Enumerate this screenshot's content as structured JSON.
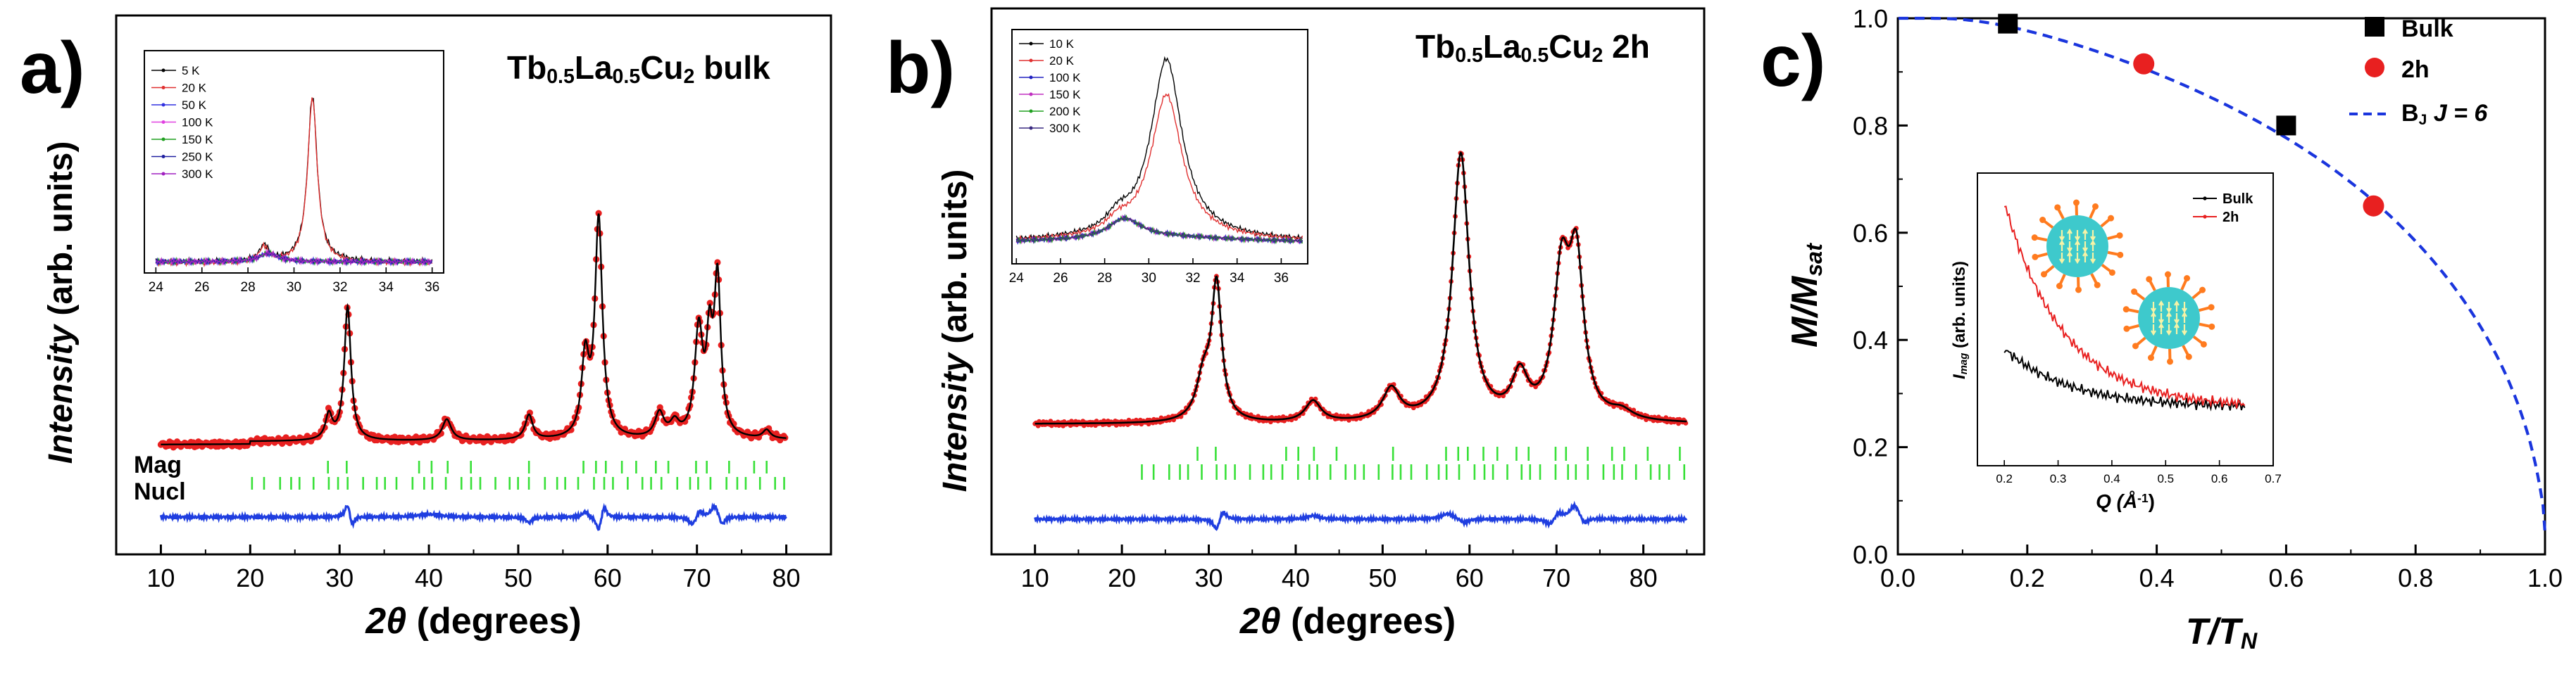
{
  "chart_data": [
    {
      "type": "line",
      "panel_label": "a)",
      "title": "Tb0.5La0.5Cu2 bulk",
      "title_parts": {
        "base": "Tb",
        "s1": "0.5",
        "mid": "La",
        "s2": "0.5",
        "end": "Cu",
        "s3": "2",
        "tail": " bulk"
      },
      "xlabel_sym": "2θ",
      "xlabel_rest": " (degrees)",
      "ylabel_italic": "Intensity",
      "ylabel_rest": " (arb. units)",
      "xlim": [
        5,
        85
      ],
      "xticks": [
        "10",
        "20",
        "30",
        "40",
        "50",
        "60",
        "70",
        "80"
      ],
      "tick_labels": [
        "Mag",
        "Nucl"
      ],
      "peaks_2theta": [
        28.8,
        30.9,
        42.0,
        51.2,
        57.5,
        59.0,
        65.8,
        70.2,
        71.4,
        72.3
      ],
      "inset": {
        "type": "line",
        "xlim": [
          23.5,
          36.5
        ],
        "xticks": [
          "24",
          "26",
          "28",
          "30",
          "32",
          "34",
          "36"
        ],
        "legend": [
          "5 K",
          "20 K",
          "50 K",
          "100 K",
          "150 K",
          "250 K",
          "300 K"
        ],
        "peak_2theta": [
          28.7,
          30.8
        ]
      }
    },
    {
      "type": "line",
      "panel_label": "b)",
      "title": "Tb0.5La0.5Cu2 2h",
      "title_parts": {
        "base": "Tb",
        "s1": "0.5",
        "mid": "La",
        "s2": "0.5",
        "end": "Cu",
        "s3": "2",
        "tail": " 2h"
      },
      "xlabel_sym": "2θ",
      "xlabel_rest": " (degrees)",
      "ylabel_italic": "Intensity",
      "ylabel_rest": " (arb. units)",
      "xlim": [
        5,
        87
      ],
      "xticks": [
        "10",
        "20",
        "30",
        "40",
        "50",
        "60",
        "70",
        "80"
      ],
      "peaks_2theta": [
        29.5,
        30.9,
        42.0,
        51.0,
        59.0,
        66.0,
        70.5,
        72.3
      ],
      "inset": {
        "type": "line",
        "xlim": [
          23.8,
          37.2
        ],
        "xticks": [
          "24",
          "26",
          "28",
          "30",
          "32",
          "34",
          "36"
        ],
        "legend": [
          "10 K",
          "20 K",
          "100 K",
          "150 K",
          "200 K",
          "300 K"
        ],
        "peak_2theta": [
          28.7,
          30.8
        ]
      }
    },
    {
      "type": "scatter",
      "panel_label": "c)",
      "xlabel_main": "T/T",
      "xlabel_sub": "N",
      "ylabel_main": "M/M",
      "ylabel_sub": "sat",
      "xlim": [
        0,
        1
      ],
      "ylim": [
        0,
        1
      ],
      "xticks": [
        "0.0",
        "0.2",
        "0.4",
        "0.6",
        "0.8",
        "1.0"
      ],
      "yticks": [
        "0.0",
        "0.2",
        "0.4",
        "0.6",
        "0.8",
        "1.0"
      ],
      "series": [
        {
          "name": "Bulk",
          "color": "#000000",
          "marker": "square",
          "x": [
            0.17,
            0.6
          ],
          "y": [
            0.99,
            0.8
          ]
        },
        {
          "name": "2h",
          "color": "#e82020",
          "marker": "circle",
          "x": [
            0.38,
            0.735
          ],
          "y": [
            0.915,
            0.65
          ]
        },
        {
          "name_parts": [
            "B",
            "J",
            " J = 6"
          ],
          "color": "#1a35dd",
          "style": "dashed",
          "curve": "Brillouin"
        }
      ],
      "inset": {
        "type": "line",
        "xlabel": "Q (Å-1)",
        "xlabel_main": "Q (Å",
        "xlabel_sup": "-1",
        "xlabel_close": ")",
        "ylabel": "Imag (arb. units)",
        "ylabel_main": "I",
        "ylabel_sub": "mag",
        "ylabel_rest": " (arb. units)",
        "xlim": [
          0.15,
          0.7
        ],
        "xticks": [
          "0.2",
          "0.3",
          "0.4",
          "0.5",
          "0.6",
          "0.7"
        ],
        "legend": [
          "Bulk",
          "2h"
        ],
        "series": [
          {
            "name": "Bulk",
            "color": "#000000",
            "x": [
              0.2,
              0.3,
              0.4,
              0.5,
              0.65
            ],
            "y": [
              0.3,
              0.26,
              0.23,
              0.21,
              0.2
            ]
          },
          {
            "name": "2h",
            "color": "#e82020",
            "x": [
              0.2,
              0.3,
              0.4,
              0.5,
              0.65
            ],
            "y": [
              0.55,
              0.4,
              0.29,
              0.24,
              0.2
            ]
          }
        ]
      }
    }
  ],
  "colors": {
    "calc": "#000000",
    "obs": "#e82020",
    "diff": "#1f3ee0",
    "ticks": "#38e038",
    "fit": "#1a35dd",
    "particle": "#3ec9cc",
    "spike": "#ff7b1f",
    "arrow": "#f7f3a6"
  }
}
